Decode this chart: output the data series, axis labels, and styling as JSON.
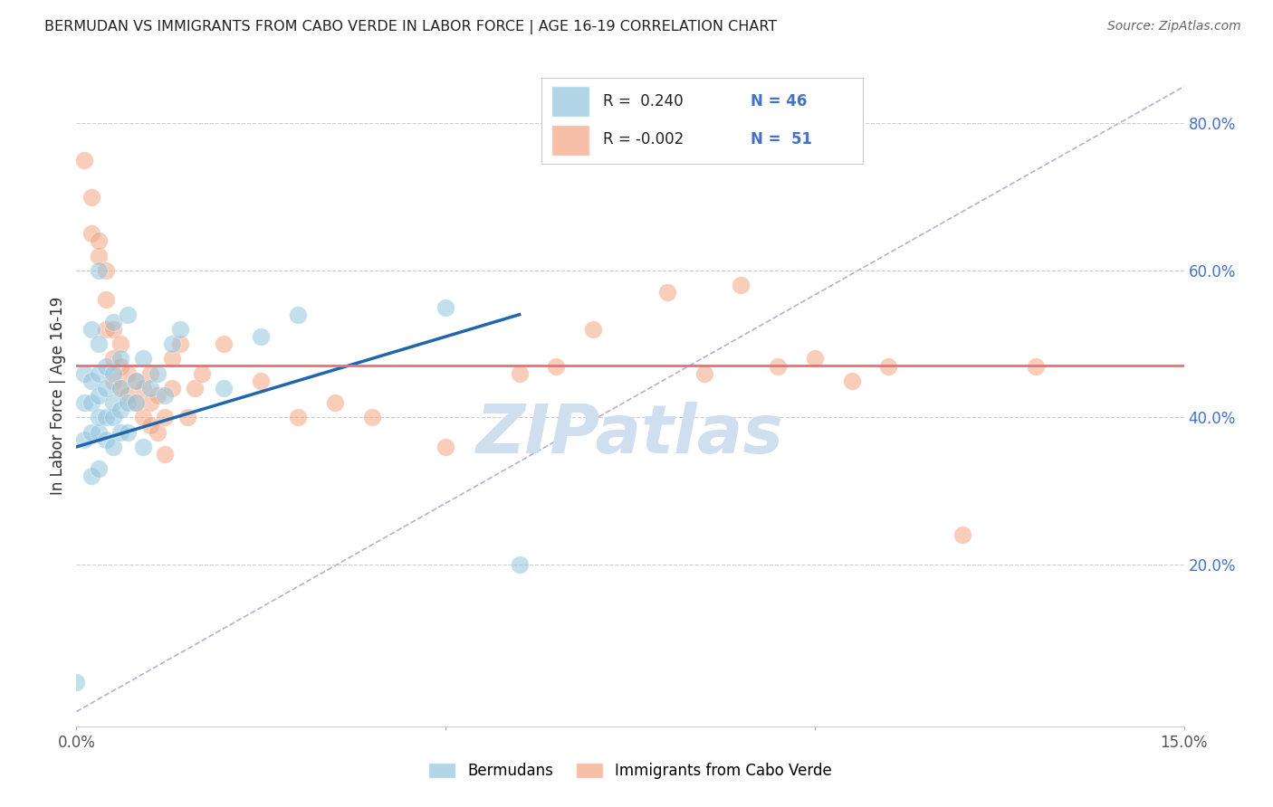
{
  "title": "BERMUDAN VS IMMIGRANTS FROM CABO VERDE IN LABOR FORCE | AGE 16-19 CORRELATION CHART",
  "source": "Source: ZipAtlas.com",
  "ylabel": "In Labor Force | Age 16-19",
  "xlim": [
    0.0,
    0.15
  ],
  "ylim": [
    -0.02,
    0.88
  ],
  "yticks_right": [
    0.2,
    0.4,
    0.6,
    0.8
  ],
  "ytick_labels_right": [
    "20.0%",
    "40.0%",
    "60.0%",
    "80.0%"
  ],
  "bermudans_R": 0.24,
  "bermudans_N": 46,
  "caboverde_R": -0.002,
  "caboverde_N": 51,
  "blue_color": "#92c5de",
  "pink_color": "#f4a582",
  "blue_line_color": "#2166ac",
  "pink_line_color": "#e8707a",
  "diagonal_line_color": "#aaaacc",
  "watermark_color": "#d0dff0",
  "bermudans_x": [
    0.0,
    0.001,
    0.001,
    0.001,
    0.002,
    0.002,
    0.002,
    0.002,
    0.002,
    0.003,
    0.003,
    0.003,
    0.003,
    0.003,
    0.003,
    0.003,
    0.004,
    0.004,
    0.004,
    0.004,
    0.005,
    0.005,
    0.005,
    0.005,
    0.005,
    0.006,
    0.006,
    0.006,
    0.006,
    0.007,
    0.007,
    0.007,
    0.008,
    0.008,
    0.009,
    0.009,
    0.01,
    0.011,
    0.012,
    0.013,
    0.014,
    0.02,
    0.025,
    0.03,
    0.05,
    0.06
  ],
  "bermudans_y": [
    0.04,
    0.37,
    0.42,
    0.46,
    0.32,
    0.38,
    0.42,
    0.45,
    0.52,
    0.33,
    0.38,
    0.4,
    0.43,
    0.46,
    0.5,
    0.6,
    0.37,
    0.4,
    0.44,
    0.47,
    0.36,
    0.4,
    0.42,
    0.46,
    0.53,
    0.38,
    0.41,
    0.44,
    0.48,
    0.38,
    0.42,
    0.54,
    0.42,
    0.45,
    0.36,
    0.48,
    0.44,
    0.46,
    0.43,
    0.5,
    0.52,
    0.44,
    0.51,
    0.54,
    0.55,
    0.2
  ],
  "caboverde_x": [
    0.001,
    0.002,
    0.002,
    0.003,
    0.003,
    0.004,
    0.004,
    0.004,
    0.005,
    0.005,
    0.005,
    0.006,
    0.006,
    0.006,
    0.007,
    0.007,
    0.008,
    0.008,
    0.009,
    0.009,
    0.01,
    0.01,
    0.01,
    0.011,
    0.011,
    0.012,
    0.012,
    0.013,
    0.013,
    0.014,
    0.015,
    0.016,
    0.017,
    0.02,
    0.025,
    0.03,
    0.035,
    0.04,
    0.05,
    0.06,
    0.065,
    0.07,
    0.08,
    0.085,
    0.09,
    0.095,
    0.1,
    0.105,
    0.11,
    0.12,
    0.13
  ],
  "caboverde_y": [
    0.75,
    0.65,
    0.7,
    0.62,
    0.64,
    0.52,
    0.56,
    0.6,
    0.45,
    0.48,
    0.52,
    0.44,
    0.47,
    0.5,
    0.43,
    0.46,
    0.42,
    0.45,
    0.4,
    0.44,
    0.39,
    0.42,
    0.46,
    0.38,
    0.43,
    0.35,
    0.4,
    0.44,
    0.48,
    0.5,
    0.4,
    0.44,
    0.46,
    0.5,
    0.45,
    0.4,
    0.42,
    0.4,
    0.36,
    0.46,
    0.47,
    0.52,
    0.57,
    0.46,
    0.58,
    0.47,
    0.48,
    0.45,
    0.47,
    0.24,
    0.47
  ],
  "blue_trendline_x": [
    0.0,
    0.06
  ],
  "blue_trendline_y": [
    0.36,
    0.54
  ],
  "pink_trendline_x": [
    0.0,
    0.15
  ],
  "pink_trendline_y": [
    0.471,
    0.471
  ],
  "diag_line_x": [
    0.0,
    0.15
  ],
  "diag_line_y": [
    0.0,
    0.85
  ]
}
